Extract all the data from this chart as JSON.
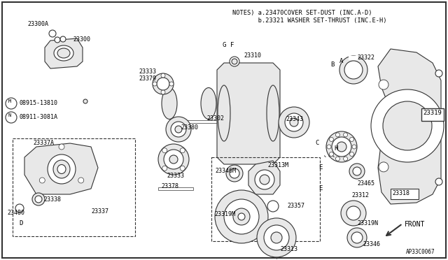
{
  "bg_color": "#ffffff",
  "notes_line1": "NOTES) a.23470COVER SET-DUST (INC.A-D)",
  "notes_line2": "       b.23321 WASHER SET-THRUST (INC.E-H)",
  "diagram_id": "AP33C0067",
  "lw": 0.8,
  "gc": "#333333",
  "fc_light": "#e8e8e8",
  "fc_white": "#ffffff"
}
